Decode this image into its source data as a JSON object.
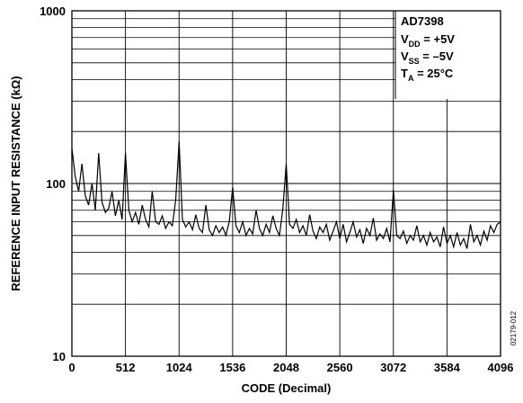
{
  "chart_data": {
    "type": "line",
    "xlabel": "CODE (Decimal)",
    "ylabel": "REFERENCE INPUT RESISTANCE (kΩ)",
    "xlim": [
      0,
      4096
    ],
    "ylim": [
      10,
      1000
    ],
    "yscale": "log",
    "grid": true,
    "x_ticks": [
      "0",
      "512",
      "1024",
      "1536",
      "2048",
      "2560",
      "3072",
      "3584",
      "4096"
    ],
    "y_ticks": [
      "10",
      "100",
      "1000"
    ],
    "annotation": {
      "title": "AD7398",
      "lines": [
        {
          "main": "V",
          "sub": "DD",
          "rest": " = +5V"
        },
        {
          "main": "V",
          "sub": "SS",
          "rest": " = –5V"
        },
        {
          "main": "T",
          "sub": "A",
          "rest": " = 25°C"
        }
      ]
    },
    "figure_id": "02179-012",
    "series": [
      {
        "x": [
          0,
          32,
          64,
          96,
          128,
          160,
          192,
          224,
          256,
          288,
          320,
          352,
          384,
          416,
          448,
          480,
          512,
          544,
          576,
          608,
          640,
          672,
          704,
          736,
          768,
          800,
          832,
          864,
          896,
          928,
          960,
          992,
          1024,
          1056,
          1088,
          1120,
          1152,
          1184,
          1216,
          1248,
          1280,
          1312,
          1344,
          1376,
          1408,
          1440,
          1472,
          1504,
          1536,
          1568,
          1600,
          1632,
          1664,
          1696,
          1728,
          1760,
          1792,
          1824,
          1856,
          1888,
          1920,
          1952,
          1984,
          2016,
          2048,
          2080,
          2112,
          2144,
          2176,
          2208,
          2240,
          2272,
          2304,
          2336,
          2368,
          2400,
          2432,
          2464,
          2496,
          2528,
          2560,
          2592,
          2624,
          2656,
          2688,
          2720,
          2752,
          2784,
          2816,
          2848,
          2880,
          2912,
          2944,
          2976,
          3008,
          3040,
          3072,
          3104,
          3136,
          3168,
          3200,
          3232,
          3264,
          3296,
          3328,
          3360,
          3392,
          3424,
          3456,
          3488,
          3520,
          3552,
          3584,
          3616,
          3648,
          3680,
          3712,
          3744,
          3776,
          3808,
          3840,
          3872,
          3904,
          3936,
          3968,
          4000,
          4032,
          4064,
          4096
        ],
        "y": [
          160,
          110,
          90,
          130,
          85,
          75,
          100,
          70,
          150,
          78,
          68,
          72,
          90,
          65,
          80,
          62,
          150,
          70,
          60,
          68,
          58,
          75,
          62,
          56,
          90,
          60,
          58,
          65,
          55,
          60,
          57,
          80,
          175,
          62,
          56,
          60,
          54,
          66,
          55,
          52,
          75,
          54,
          50,
          57,
          52,
          56,
          50,
          60,
          95,
          57,
          52,
          60,
          50,
          55,
          51,
          70,
          55,
          50,
          58,
          52,
          65,
          55,
          50,
          72,
          130,
          58,
          55,
          62,
          52,
          57,
          50,
          66,
          53,
          48,
          56,
          52,
          58,
          47,
          53,
          60,
          48,
          58,
          46,
          52,
          60,
          49,
          54,
          45,
          55,
          50,
          63,
          47,
          51,
          48,
          55,
          46,
          92,
          50,
          48,
          53,
          45,
          50,
          47,
          57,
          46,
          50,
          44,
          52,
          46,
          49,
          43,
          56,
          45,
          50,
          43,
          52,
          44,
          48,
          42,
          58,
          46,
          50,
          44,
          53,
          47,
          57,
          52,
          58,
          60
        ]
      }
    ]
  }
}
